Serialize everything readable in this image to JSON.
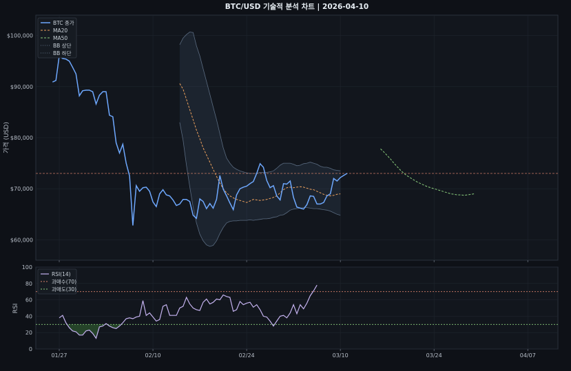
{
  "chart_data": {
    "type": "line",
    "title": "BTC/USD 기술적 분석 차트 | 2026-04-10",
    "x_tick_labels": [
      "01/27",
      "02/10",
      "02/24",
      "03/10",
      "03/24",
      "04/07"
    ],
    "x_tick_days": [
      0,
      14,
      28,
      42,
      56,
      70
    ],
    "x_range_days": [
      -3.5,
      74.5
    ],
    "price_panel": {
      "ylabel": "가격 (USD)",
      "ylim": [
        56000,
        104000
      ],
      "y_ticks": [
        60000,
        70000,
        80000,
        90000,
        100000
      ],
      "y_tick_labels": [
        "$60,000",
        "$70,000",
        "$80,000",
        "$90,000",
        "$100,000"
      ],
      "reference_line": 73000,
      "legend_position": "top-left",
      "legend": [
        "BTC 종가",
        "MA20",
        "MA50",
        "BB 상단",
        "BB 하단"
      ],
      "series": [
        {
          "name": "BTC 종가",
          "color": "#6ea8fe",
          "start_day": -1,
          "values": [
            90900,
            91200,
            96000,
            95500,
            95400,
            95000,
            93800,
            92500,
            88200,
            89200,
            89300,
            89300,
            89000,
            86600,
            88300,
            89000,
            89000,
            84400,
            84100,
            79000,
            77000,
            78700,
            75000,
            72500,
            62800,
            70600,
            69500,
            70200,
            70300,
            69500,
            67400,
            66500,
            69000,
            69800,
            68800,
            68600,
            67800,
            66700,
            67000,
            67900,
            67900,
            67500,
            64800,
            64200,
            68000,
            67500,
            66100,
            67100,
            66200,
            67900,
            72600,
            69900,
            68600,
            67200,
            65900,
            68800,
            70000,
            70300,
            70500,
            71000,
            71400,
            73000,
            74900,
            74200,
            71600,
            70200,
            70600,
            68600,
            67800,
            71000,
            70900,
            71500,
            68300,
            66400,
            66200,
            66000,
            66900,
            68600,
            68500,
            67000,
            67000,
            67300,
            68600,
            69000,
            72000,
            71500,
            72200,
            72600,
            73000
          ]
        },
        {
          "name": "MA20",
          "color": "#f0a35e",
          "start_day": 18,
          "values": [
            90600,
            89500,
            87500,
            85500,
            83500,
            81500,
            79800,
            78000,
            76600,
            75200,
            73800,
            72400,
            71100,
            70000,
            69200,
            68600,
            68200,
            67900,
            67700,
            67500,
            67300,
            67600,
            67900,
            67800,
            67700,
            67800,
            67900,
            68100,
            68300,
            68600,
            69200,
            69800,
            70200,
            70300,
            70200,
            70300,
            70400,
            70300,
            70100,
            69900,
            69800,
            69500,
            69200,
            68900,
            68700,
            68600,
            68700,
            68900,
            69000
          ]
        },
        {
          "name": "MA50",
          "color": "#8ccf7e",
          "start_day": 48,
          "values": [
            77800,
            77200,
            76500,
            75800,
            75000,
            74300,
            73600,
            73000,
            72500,
            72100,
            71700,
            71300,
            71000,
            70700,
            70400,
            70200,
            70000,
            69800,
            69600,
            69400,
            69200,
            69000,
            68900,
            68800,
            68800,
            68700,
            68800,
            68900,
            69000
          ]
        },
        {
          "name": "BB 상단",
          "color": "#5a6b80",
          "start_day": 18,
          "values": [
            98200,
            99500,
            100200,
            100700,
            100600,
            98000,
            96000,
            93500,
            91000,
            88500,
            86000,
            83500,
            80800,
            78000,
            76000,
            75000,
            74200,
            73800,
            73500,
            73300,
            73100,
            73000,
            73000,
            73000,
            73200,
            73200,
            73200,
            73300,
            73500,
            74000,
            74600,
            75000,
            75000,
            75000,
            74800,
            74500,
            74600,
            74900,
            75000,
            75200,
            75000,
            74800,
            74400,
            74200,
            74200,
            74000,
            73700,
            73600,
            73500
          ]
        },
        {
          "name": "BB 하단",
          "color": "#5a6b80",
          "start_day": 18,
          "values": [
            83000,
            79500,
            74600,
            70400,
            66400,
            63300,
            61100,
            59800,
            59000,
            58700,
            58900,
            59800,
            61200,
            62400,
            63300,
            63600,
            63700,
            63700,
            63800,
            63800,
            63800,
            63900,
            63800,
            63900,
            64000,
            64100,
            64100,
            64200,
            64400,
            64500,
            64800,
            64900,
            65300,
            65800,
            66000,
            66100,
            66200,
            66300,
            66300,
            66200,
            66100,
            66100,
            66000,
            65900,
            65800,
            65600,
            65300,
            65000,
            64800
          ]
        }
      ]
    },
    "rsi_panel": {
      "ylabel": "RSI",
      "ylim": [
        0,
        100
      ],
      "y_ticks": [
        0,
        20,
        40,
        60,
        80,
        100
      ],
      "overbought": 70,
      "oversold": 30,
      "legend_position": "top-left",
      "legend": [
        "RSI(14)",
        "과매수(70)",
        "과매도(30)"
      ],
      "series": [
        {
          "name": "RSI(14)",
          "color": "#c5b3f0",
          "start_day": 0,
          "values": [
            38,
            41,
            32,
            26,
            22,
            21,
            17,
            17,
            22,
            23,
            19,
            13,
            27,
            28,
            31,
            28,
            26,
            25,
            28,
            32,
            37,
            38,
            37,
            39,
            40,
            59,
            41,
            44,
            39,
            34,
            36,
            52,
            54,
            41,
            41,
            41,
            50,
            52,
            63,
            55,
            50,
            48,
            47,
            57,
            61,
            55,
            57,
            61,
            60,
            66,
            64,
            63,
            46,
            48,
            58,
            54,
            56,
            57,
            51,
            54,
            48,
            40,
            39,
            34,
            28,
            34,
            40,
            41,
            38,
            44,
            54,
            43,
            54,
            49,
            56,
            65,
            71,
            78
          ]
        }
      ]
    }
  }
}
